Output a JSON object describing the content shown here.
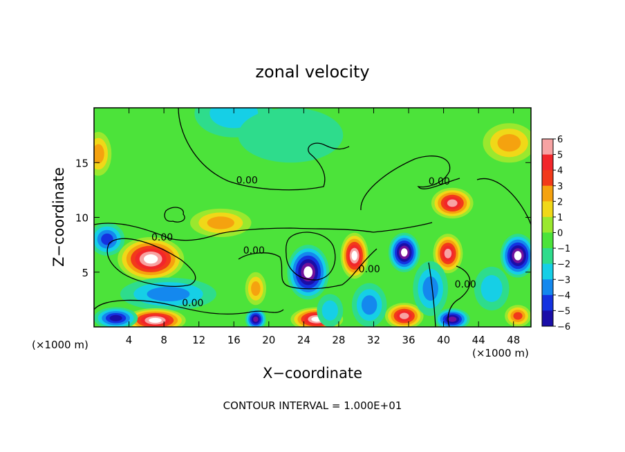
{
  "chart_data": {
    "type": "heatmap",
    "title": "zonal velocity",
    "xlabel": "X−coordinate",
    "ylabel": "Z−coordinate",
    "x_unit_left": "(×1000 m)",
    "x_unit_right": "(×1000 m)",
    "x_ticks": [
      4,
      8,
      12,
      16,
      20,
      24,
      28,
      32,
      36,
      40,
      44,
      48
    ],
    "y_ticks": [
      5,
      10,
      15
    ],
    "xlim": [
      0,
      50
    ],
    "ylim": [
      0,
      20
    ],
    "footer": "CONTOUR INTERVAL = 1.000E+01",
    "colorbar_labels": [
      "6",
      "5",
      "4",
      "3",
      "2",
      "1",
      "0",
      "−1",
      "−2",
      "−3",
      "−4",
      "−5",
      "−6"
    ],
    "colorbar_values": [
      6,
      5,
      4,
      3,
      2,
      1,
      0,
      -1,
      -2,
      -3,
      -4,
      -5,
      -6
    ],
    "contour_labels": [
      {
        "text": "0.00",
        "x": 17.5,
        "y": 13.1
      },
      {
        "text": "0.00",
        "x": 39.5,
        "y": 13.0
      },
      {
        "text": "0.00",
        "x": 7.8,
        "y": 7.9
      },
      {
        "text": "0.00",
        "x": 18.3,
        "y": 6.7
      },
      {
        "text": "0.00",
        "x": 31.5,
        "y": 5.0
      },
      {
        "text": "0.00",
        "x": 42.5,
        "y": 3.6
      },
      {
        "text": "0.00",
        "x": 11.3,
        "y": 1.9
      }
    ],
    "blobs": [
      {
        "x": 0.5,
        "y": 15.8,
        "v": 3,
        "rx": 1.5,
        "ry": 2.0
      },
      {
        "x": 47.5,
        "y": 16.8,
        "v": 3,
        "rx": 3.0,
        "ry": 1.8
      },
      {
        "x": 16.0,
        "y": 19.5,
        "v": -2,
        "rx": 4.5,
        "ry": 2.2
      },
      {
        "x": 22.5,
        "y": 17.5,
        "v": -1,
        "rx": 6.0,
        "ry": 2.5
      },
      {
        "x": 14.5,
        "y": 9.5,
        "v": 3,
        "rx": 3.5,
        "ry": 1.3
      },
      {
        "x": 6.5,
        "y": 6.2,
        "v": 7,
        "rx": 3.8,
        "ry": 2.0
      },
      {
        "x": 1.5,
        "y": 8.0,
        "v": -4,
        "rx": 2.0,
        "ry": 1.5
      },
      {
        "x": 8.5,
        "y": 3.0,
        "v": -3,
        "rx": 5.5,
        "ry": 1.5
      },
      {
        "x": 7.0,
        "y": 0.6,
        "v": 7,
        "rx": 3.5,
        "ry": 1.1
      },
      {
        "x": 2.5,
        "y": 0.8,
        "v": -5,
        "rx": 2.5,
        "ry": 1.0
      },
      {
        "x": 18.5,
        "y": 3.5,
        "v": 3,
        "rx": 1.2,
        "ry": 1.5
      },
      {
        "x": 18.5,
        "y": 0.7,
        "v": -6,
        "rx": 1.2,
        "ry": 1.0
      },
      {
        "x": 24.5,
        "y": 5.0,
        "v": -7,
        "rx": 2.4,
        "ry": 2.5
      },
      {
        "x": 25.5,
        "y": 0.7,
        "v": 7,
        "rx": 3.0,
        "ry": 1.1
      },
      {
        "x": 29.8,
        "y": 6.5,
        "v": 7,
        "rx": 1.6,
        "ry": 2.1
      },
      {
        "x": 31.5,
        "y": 2.0,
        "v": -3,
        "rx": 2.0,
        "ry": 2.0
      },
      {
        "x": 35.5,
        "y": 6.8,
        "v": -7,
        "rx": 1.8,
        "ry": 1.8
      },
      {
        "x": 35.5,
        "y": 1.0,
        "v": 6,
        "rx": 2.2,
        "ry": 1.2
      },
      {
        "x": 41.0,
        "y": 11.3,
        "v": 6,
        "rx": 2.4,
        "ry": 1.4
      },
      {
        "x": 40.5,
        "y": 6.7,
        "v": 6,
        "rx": 1.7,
        "ry": 1.8
      },
      {
        "x": 38.5,
        "y": 3.5,
        "v": -3,
        "rx": 2.0,
        "ry": 2.5
      },
      {
        "x": 41.0,
        "y": 0.7,
        "v": -6,
        "rx": 2.0,
        "ry": 1.0
      },
      {
        "x": 48.5,
        "y": 6.5,
        "v": -7,
        "rx": 2.0,
        "ry": 2.0
      },
      {
        "x": 48.5,
        "y": 1.0,
        "v": 4,
        "rx": 1.5,
        "ry": 1.0
      },
      {
        "x": 27.0,
        "y": 1.5,
        "v": -2,
        "rx": 1.5,
        "ry": 1.5
      },
      {
        "x": 45.5,
        "y": 3.5,
        "v": -2,
        "rx": 2.0,
        "ry": 2.0
      }
    ]
  }
}
